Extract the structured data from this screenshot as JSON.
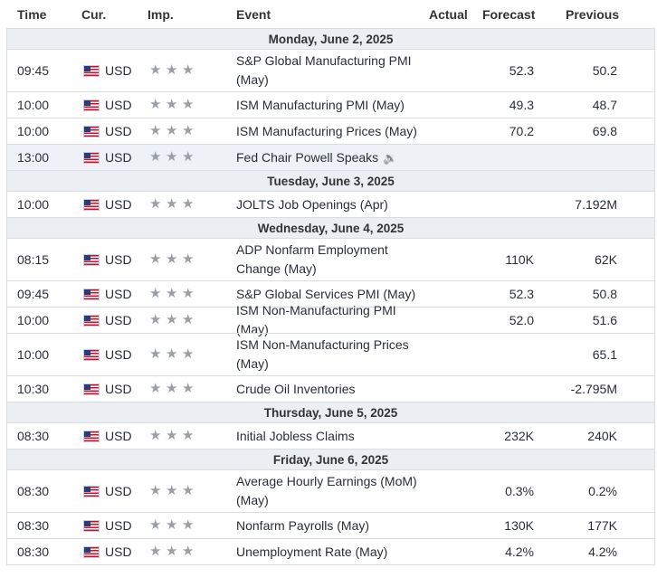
{
  "headers": {
    "time": "Time",
    "currency": "Cur.",
    "importance": "Imp.",
    "event": "Event",
    "actual": "Actual",
    "forecast": "Forecast",
    "previous": "Previous"
  },
  "colors": {
    "day_row_bg": "#ebeef2",
    "highlight_row_bg": "#eef2f6",
    "border": "#d9dce1",
    "star": "#9aa0a6"
  },
  "days": [
    {
      "label": "Monday, June 2, 2025",
      "events": [
        {
          "time": "09:45",
          "currency": "USD",
          "stars": 3,
          "event": "S&P Global Manufacturing PMI (May)",
          "actual": "",
          "forecast": "52.3",
          "previous": "50.2"
        },
        {
          "time": "10:00",
          "currency": "USD",
          "stars": 3,
          "event": "ISM Manufacturing PMI (May)",
          "actual": "",
          "forecast": "49.3",
          "previous": "48.7"
        },
        {
          "time": "10:00",
          "currency": "USD",
          "stars": 3,
          "event": "ISM Manufacturing Prices (May)",
          "actual": "",
          "forecast": "70.2",
          "previous": "69.8"
        },
        {
          "time": "13:00",
          "currency": "USD",
          "stars": 3,
          "event": "Fed Chair Powell Speaks",
          "actual": "",
          "forecast": "",
          "previous": "",
          "speaker_icon": true,
          "highlight": true
        }
      ]
    },
    {
      "label": "Tuesday, June 3, 2025",
      "events": [
        {
          "time": "10:00",
          "currency": "USD",
          "stars": 3,
          "event": "JOLTS Job Openings (Apr)",
          "actual": "",
          "forecast": "",
          "previous": "7.192M"
        }
      ]
    },
    {
      "label": "Wednesday, June 4, 2025",
      "events": [
        {
          "time": "08:15",
          "currency": "USD",
          "stars": 3,
          "event": "ADP Nonfarm Employment Change (May)",
          "actual": "",
          "forecast": "110K",
          "previous": "62K"
        },
        {
          "time": "09:45",
          "currency": "USD",
          "stars": 3,
          "event": "S&P Global Services PMI (May)",
          "actual": "",
          "forecast": "52.3",
          "previous": "50.8"
        },
        {
          "time": "10:00",
          "currency": "USD",
          "stars": 3,
          "event": "ISM Non-Manufacturing PMI (May)",
          "actual": "",
          "forecast": "52.0",
          "previous": "51.6"
        },
        {
          "time": "10:00",
          "currency": "USD",
          "stars": 3,
          "event": "ISM Non-Manufacturing Prices (May)",
          "actual": "",
          "forecast": "",
          "previous": "65.1"
        },
        {
          "time": "10:30",
          "currency": "USD",
          "stars": 3,
          "event": "Crude Oil Inventories",
          "actual": "",
          "forecast": "",
          "previous": "-2.795M"
        }
      ]
    },
    {
      "label": "Thursday, June 5, 2025",
      "events": [
        {
          "time": "08:30",
          "currency": "USD",
          "stars": 3,
          "event": "Initial Jobless Claims",
          "actual": "",
          "forecast": "232K",
          "previous": "240K"
        }
      ]
    },
    {
      "label": "Friday, June 6, 2025",
      "events": [
        {
          "time": "08:30",
          "currency": "USD",
          "stars": 3,
          "event": "Average Hourly Earnings (MoM) (May)",
          "actual": "",
          "forecast": "0.3%",
          "previous": "0.2%"
        },
        {
          "time": "08:30",
          "currency": "USD",
          "stars": 3,
          "event": "Nonfarm Payrolls (May)",
          "actual": "",
          "forecast": "130K",
          "previous": "177K"
        },
        {
          "time": "08:30",
          "currency": "USD",
          "stars": 3,
          "event": "Unemployment Rate (May)",
          "actual": "",
          "forecast": "4.2%",
          "previous": "4.2%"
        }
      ]
    }
  ]
}
